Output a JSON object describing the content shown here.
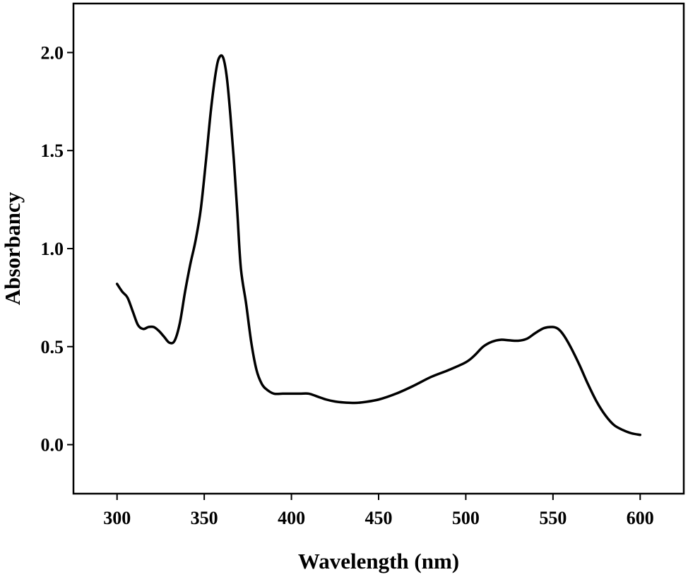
{
  "chart_data": {
    "type": "line",
    "title": "",
    "xlabel": "Wavelength (nm)",
    "ylabel": "Absorbancy",
    "xlim": [
      275,
      625
    ],
    "ylim": [
      -0.25,
      2.25
    ],
    "xticks": [
      300,
      350,
      400,
      450,
      500,
      550,
      600
    ],
    "xtick_labels": [
      "300",
      "350",
      "400",
      "450",
      "500",
      "550",
      "600"
    ],
    "yticks": [
      0.0,
      0.5,
      1.0,
      1.5,
      2.0
    ],
    "ytick_labels": [
      "0.0",
      "0.5",
      "1.0",
      "1.5",
      "2.0"
    ],
    "grid": false,
    "series": [
      {
        "name": "absorbance",
        "color": "#000000",
        "x": [
          300,
          303,
          306,
          309,
          312,
          315,
          318,
          321,
          324,
          327,
          330,
          333,
          336,
          339,
          342,
          345,
          348,
          351,
          354,
          357,
          359,
          361,
          363,
          365,
          367,
          369,
          371,
          374,
          377,
          380,
          383,
          386,
          390,
          395,
          400,
          405,
          410,
          415,
          420,
          425,
          430,
          435,
          440,
          450,
          460,
          470,
          480,
          490,
          500,
          505,
          510,
          515,
          520,
          525,
          530,
          535,
          540,
          545,
          550,
          553,
          556,
          560,
          565,
          570,
          575,
          580,
          585,
          590,
          595,
          600
        ],
        "y": [
          0.82,
          0.78,
          0.75,
          0.68,
          0.61,
          0.59,
          0.6,
          0.6,
          0.58,
          0.55,
          0.52,
          0.53,
          0.62,
          0.78,
          0.92,
          1.04,
          1.2,
          1.45,
          1.72,
          1.92,
          1.98,
          1.97,
          1.87,
          1.68,
          1.45,
          1.18,
          0.9,
          0.72,
          0.52,
          0.38,
          0.31,
          0.28,
          0.26,
          0.26,
          0.26,
          0.26,
          0.26,
          0.245,
          0.23,
          0.22,
          0.215,
          0.213,
          0.215,
          0.23,
          0.26,
          0.3,
          0.345,
          0.38,
          0.42,
          0.455,
          0.5,
          0.525,
          0.535,
          0.532,
          0.53,
          0.54,
          0.57,
          0.595,
          0.6,
          0.59,
          0.56,
          0.5,
          0.41,
          0.31,
          0.22,
          0.15,
          0.1,
          0.075,
          0.058,
          0.05
        ]
      }
    ]
  }
}
